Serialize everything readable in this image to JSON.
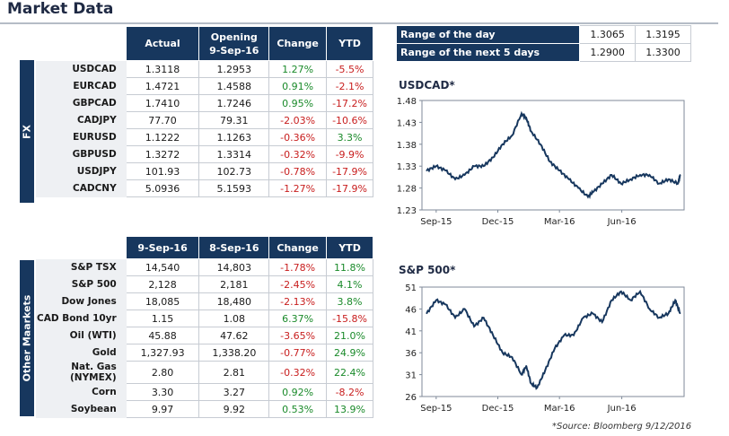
{
  "page_title": "Market Data",
  "fx": {
    "side_label": "FX",
    "headers": [
      "Actual",
      "Opening\n9-Sep-16",
      "Change",
      "YTD"
    ],
    "rows": [
      {
        "label": "USDCAD",
        "actual": "1.3118",
        "opening": "1.2953",
        "change": "1.27%",
        "ytd": "-5.5%"
      },
      {
        "label": "EURCAD",
        "actual": "1.4721",
        "opening": "1.4588",
        "change": "0.91%",
        "ytd": "-2.1%"
      },
      {
        "label": "GBPCAD",
        "actual": "1.7410",
        "opening": "1.7246",
        "change": "0.95%",
        "ytd": "-17.2%"
      },
      {
        "label": "CADJPY",
        "actual": "77.70",
        "opening": "79.31",
        "change": "-2.03%",
        "ytd": "-10.6%"
      },
      {
        "label": "EURUSD",
        "actual": "1.1222",
        "opening": "1.1263",
        "change": "-0.36%",
        "ytd": "3.3%"
      },
      {
        "label": "GBPUSD",
        "actual": "1.3272",
        "opening": "1.3314",
        "change": "-0.32%",
        "ytd": "-9.9%"
      },
      {
        "label": "USDJPY",
        "actual": "101.93",
        "opening": "102.73",
        "change": "-0.78%",
        "ytd": "-17.9%"
      },
      {
        "label": "CADCNY",
        "actual": "5.0936",
        "opening": "5.1593",
        "change": "-1.27%",
        "ytd": "-17.9%"
      }
    ]
  },
  "other": {
    "side_label": "Other Maarkets",
    "headers": [
      "9-Sep-16",
      "8-Sep-16",
      "Change",
      "YTD"
    ],
    "rows": [
      {
        "label": "S&P TSX",
        "actual": "14,540",
        "opening": "14,803",
        "change": "-1.78%",
        "ytd": "11.8%"
      },
      {
        "label": "S&P 500",
        "actual": "2,128",
        "opening": "2,181",
        "change": "-2.45%",
        "ytd": "4.1%"
      },
      {
        "label": "Dow Jones",
        "actual": "18,085",
        "opening": "18,480",
        "change": "-2.13%",
        "ytd": "3.8%"
      },
      {
        "label": "CAD Bond 10yr",
        "actual": "1.15",
        "opening": "1.08",
        "change": "6.37%",
        "ytd": "-15.8%"
      },
      {
        "label": "Oil (WTI)",
        "actual": "45.88",
        "opening": "47.62",
        "change": "-3.65%",
        "ytd": "21.0%"
      },
      {
        "label": "Gold",
        "actual": "1,327.93",
        "opening": "1,338.20",
        "change": "-0.77%",
        "ytd": "24.9%"
      },
      {
        "label": "Nat. Gas (NYMEX)",
        "actual": "2.80",
        "opening": "2.81",
        "change": "-0.32%",
        "ytd": "22.4%"
      },
      {
        "label": "Corn",
        "actual": "3.30",
        "opening": "3.27",
        "change": "0.92%",
        "ytd": "-8.2%"
      },
      {
        "label": "Soybean",
        "actual": "9.97",
        "opening": "9.92",
        "change": "0.53%",
        "ytd": "13.9%"
      }
    ]
  },
  "range": {
    "rows": [
      {
        "label": "Range of the day",
        "low": "1.3065",
        "high": "1.3195"
      },
      {
        "label": "Range of the next 5 days",
        "low": "1.2900",
        "high": "1.3300"
      }
    ]
  },
  "source": "*Source: Bloomberg  9/12/2016",
  "colors": {
    "header_bg": "#17375e",
    "positive": "#1a8a2a",
    "negative": "#c81e1e",
    "line": "#17375e"
  },
  "chart_data": [
    {
      "type": "line",
      "title": "USDCAD*",
      "ylim": [
        1.23,
        1.48
      ],
      "yticks": [
        "1.23",
        "1.28",
        "1.33",
        "1.38",
        "1.43",
        "1.48"
      ],
      "xticks": [
        "Sep-15",
        "Dec-15",
        "Mar-16",
        "Jun-16"
      ],
      "x": [
        "2015-09-01",
        "2015-09-15",
        "2015-09-29",
        "2015-10-13",
        "2015-10-27",
        "2015-11-10",
        "2015-11-24",
        "2015-12-08",
        "2015-12-22",
        "2016-01-05",
        "2016-01-19",
        "2016-01-26",
        "2016-02-02",
        "2016-02-16",
        "2016-03-01",
        "2016-03-15",
        "2016-03-29",
        "2016-04-12",
        "2016-04-26",
        "2016-05-03",
        "2016-05-17",
        "2016-05-31",
        "2016-06-14",
        "2016-06-28",
        "2016-07-12",
        "2016-07-26",
        "2016-08-09",
        "2016-08-23",
        "2016-09-06",
        "2016-09-09"
      ],
      "values": [
        1.32,
        1.33,
        1.32,
        1.3,
        1.31,
        1.33,
        1.33,
        1.35,
        1.38,
        1.4,
        1.45,
        1.44,
        1.41,
        1.38,
        1.34,
        1.32,
        1.3,
        1.28,
        1.26,
        1.27,
        1.29,
        1.31,
        1.29,
        1.3,
        1.31,
        1.31,
        1.29,
        1.3,
        1.29,
        1.31
      ]
    },
    {
      "type": "line",
      "title": "S&P 500*",
      "ylim": [
        26,
        51
      ],
      "yticks": [
        "26",
        "31",
        "36",
        "41",
        "46",
        "51"
      ],
      "xticks": [
        "Sep-15",
        "Dec-15",
        "Mar-16",
        "Jun-16"
      ],
      "x": [
        "2015-09-01",
        "2015-09-15",
        "2015-09-29",
        "2015-10-13",
        "2015-10-27",
        "2015-11-10",
        "2015-11-24",
        "2015-12-08",
        "2015-12-22",
        "2016-01-05",
        "2016-01-19",
        "2016-01-26",
        "2016-02-02",
        "2016-02-11",
        "2016-02-23",
        "2016-03-08",
        "2016-03-22",
        "2016-04-05",
        "2016-04-19",
        "2016-05-03",
        "2016-05-17",
        "2016-05-31",
        "2016-06-14",
        "2016-06-28",
        "2016-07-12",
        "2016-07-26",
        "2016-08-09",
        "2016-08-23",
        "2016-09-02",
        "2016-09-09"
      ],
      "values": [
        45,
        48,
        47,
        44,
        46,
        42,
        44,
        40,
        36,
        35,
        31,
        33,
        29,
        28,
        32,
        37,
        40,
        40,
        44,
        45,
        43,
        48,
        50,
        48,
        50,
        46,
        44,
        45,
        48,
        45
      ]
    }
  ]
}
